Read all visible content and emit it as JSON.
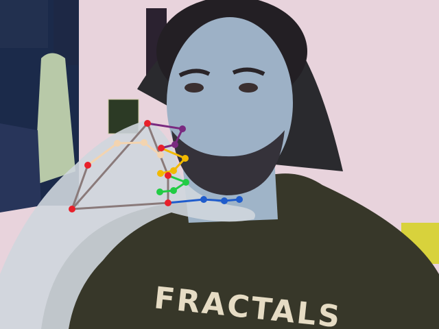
{
  "shirt_text": "FRACTALS",
  "poster_text": "",
  "landmark_style": {
    "joint_color": "#e8202a",
    "connections": [
      {
        "name": "palm",
        "color": "#8a7a7a"
      },
      {
        "name": "thumb",
        "color": "#f3d4b0"
      },
      {
        "name": "index",
        "color": "#7a2a80"
      },
      {
        "name": "middle",
        "color": "#f2b900"
      },
      {
        "name": "ring",
        "color": "#22cc44"
      },
      {
        "name": "pinky",
        "color": "#1f5ccc"
      }
    ]
  }
}
